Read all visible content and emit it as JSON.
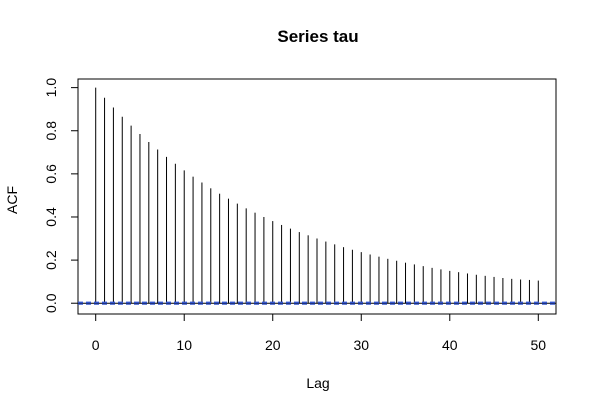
{
  "chart_data": {
    "type": "bar",
    "title": "Series  tau",
    "xlabel": "Lag",
    "ylabel": "ACF",
    "xlim": [
      -2,
      52
    ],
    "ylim": [
      -0.05,
      1.04
    ],
    "xticks": [
      0,
      10,
      20,
      30,
      40,
      50
    ],
    "yticks": [
      0.0,
      0.2,
      0.4,
      0.6,
      0.8,
      1.0
    ],
    "xtick_labels": [
      "0",
      "10",
      "20",
      "30",
      "40",
      "50"
    ],
    "ytick_labels": [
      "0.0",
      "0.2",
      "0.4",
      "0.6",
      "0.8",
      "1.0"
    ],
    "lags": [
      0,
      1,
      2,
      3,
      4,
      5,
      6,
      7,
      8,
      9,
      10,
      11,
      12,
      13,
      14,
      15,
      16,
      17,
      18,
      19,
      20,
      21,
      22,
      23,
      24,
      25,
      26,
      27,
      28,
      29,
      30,
      31,
      32,
      33,
      34,
      35,
      36,
      37,
      38,
      39,
      40,
      41,
      42,
      43,
      44,
      45,
      46,
      47,
      48,
      49,
      50
    ],
    "values": [
      1.0,
      0.953,
      0.908,
      0.865,
      0.824,
      0.785,
      0.748,
      0.713,
      0.679,
      0.647,
      0.616,
      0.587,
      0.56,
      0.533,
      0.508,
      0.485,
      0.462,
      0.44,
      0.42,
      0.4,
      0.381,
      0.363,
      0.346,
      0.33,
      0.315,
      0.3,
      0.286,
      0.273,
      0.26,
      0.248,
      0.237,
      0.226,
      0.216,
      0.206,
      0.197,
      0.188,
      0.18,
      0.172,
      0.164,
      0.157,
      0.15,
      0.144,
      0.138,
      0.132,
      0.127,
      0.122,
      0.117,
      0.113,
      0.11,
      0.108,
      0.105
    ],
    "confidence_band": [
      -0.004,
      0.004
    ],
    "zero_line_color": "#000000",
    "band_color": "#3355cc",
    "grid": false
  }
}
